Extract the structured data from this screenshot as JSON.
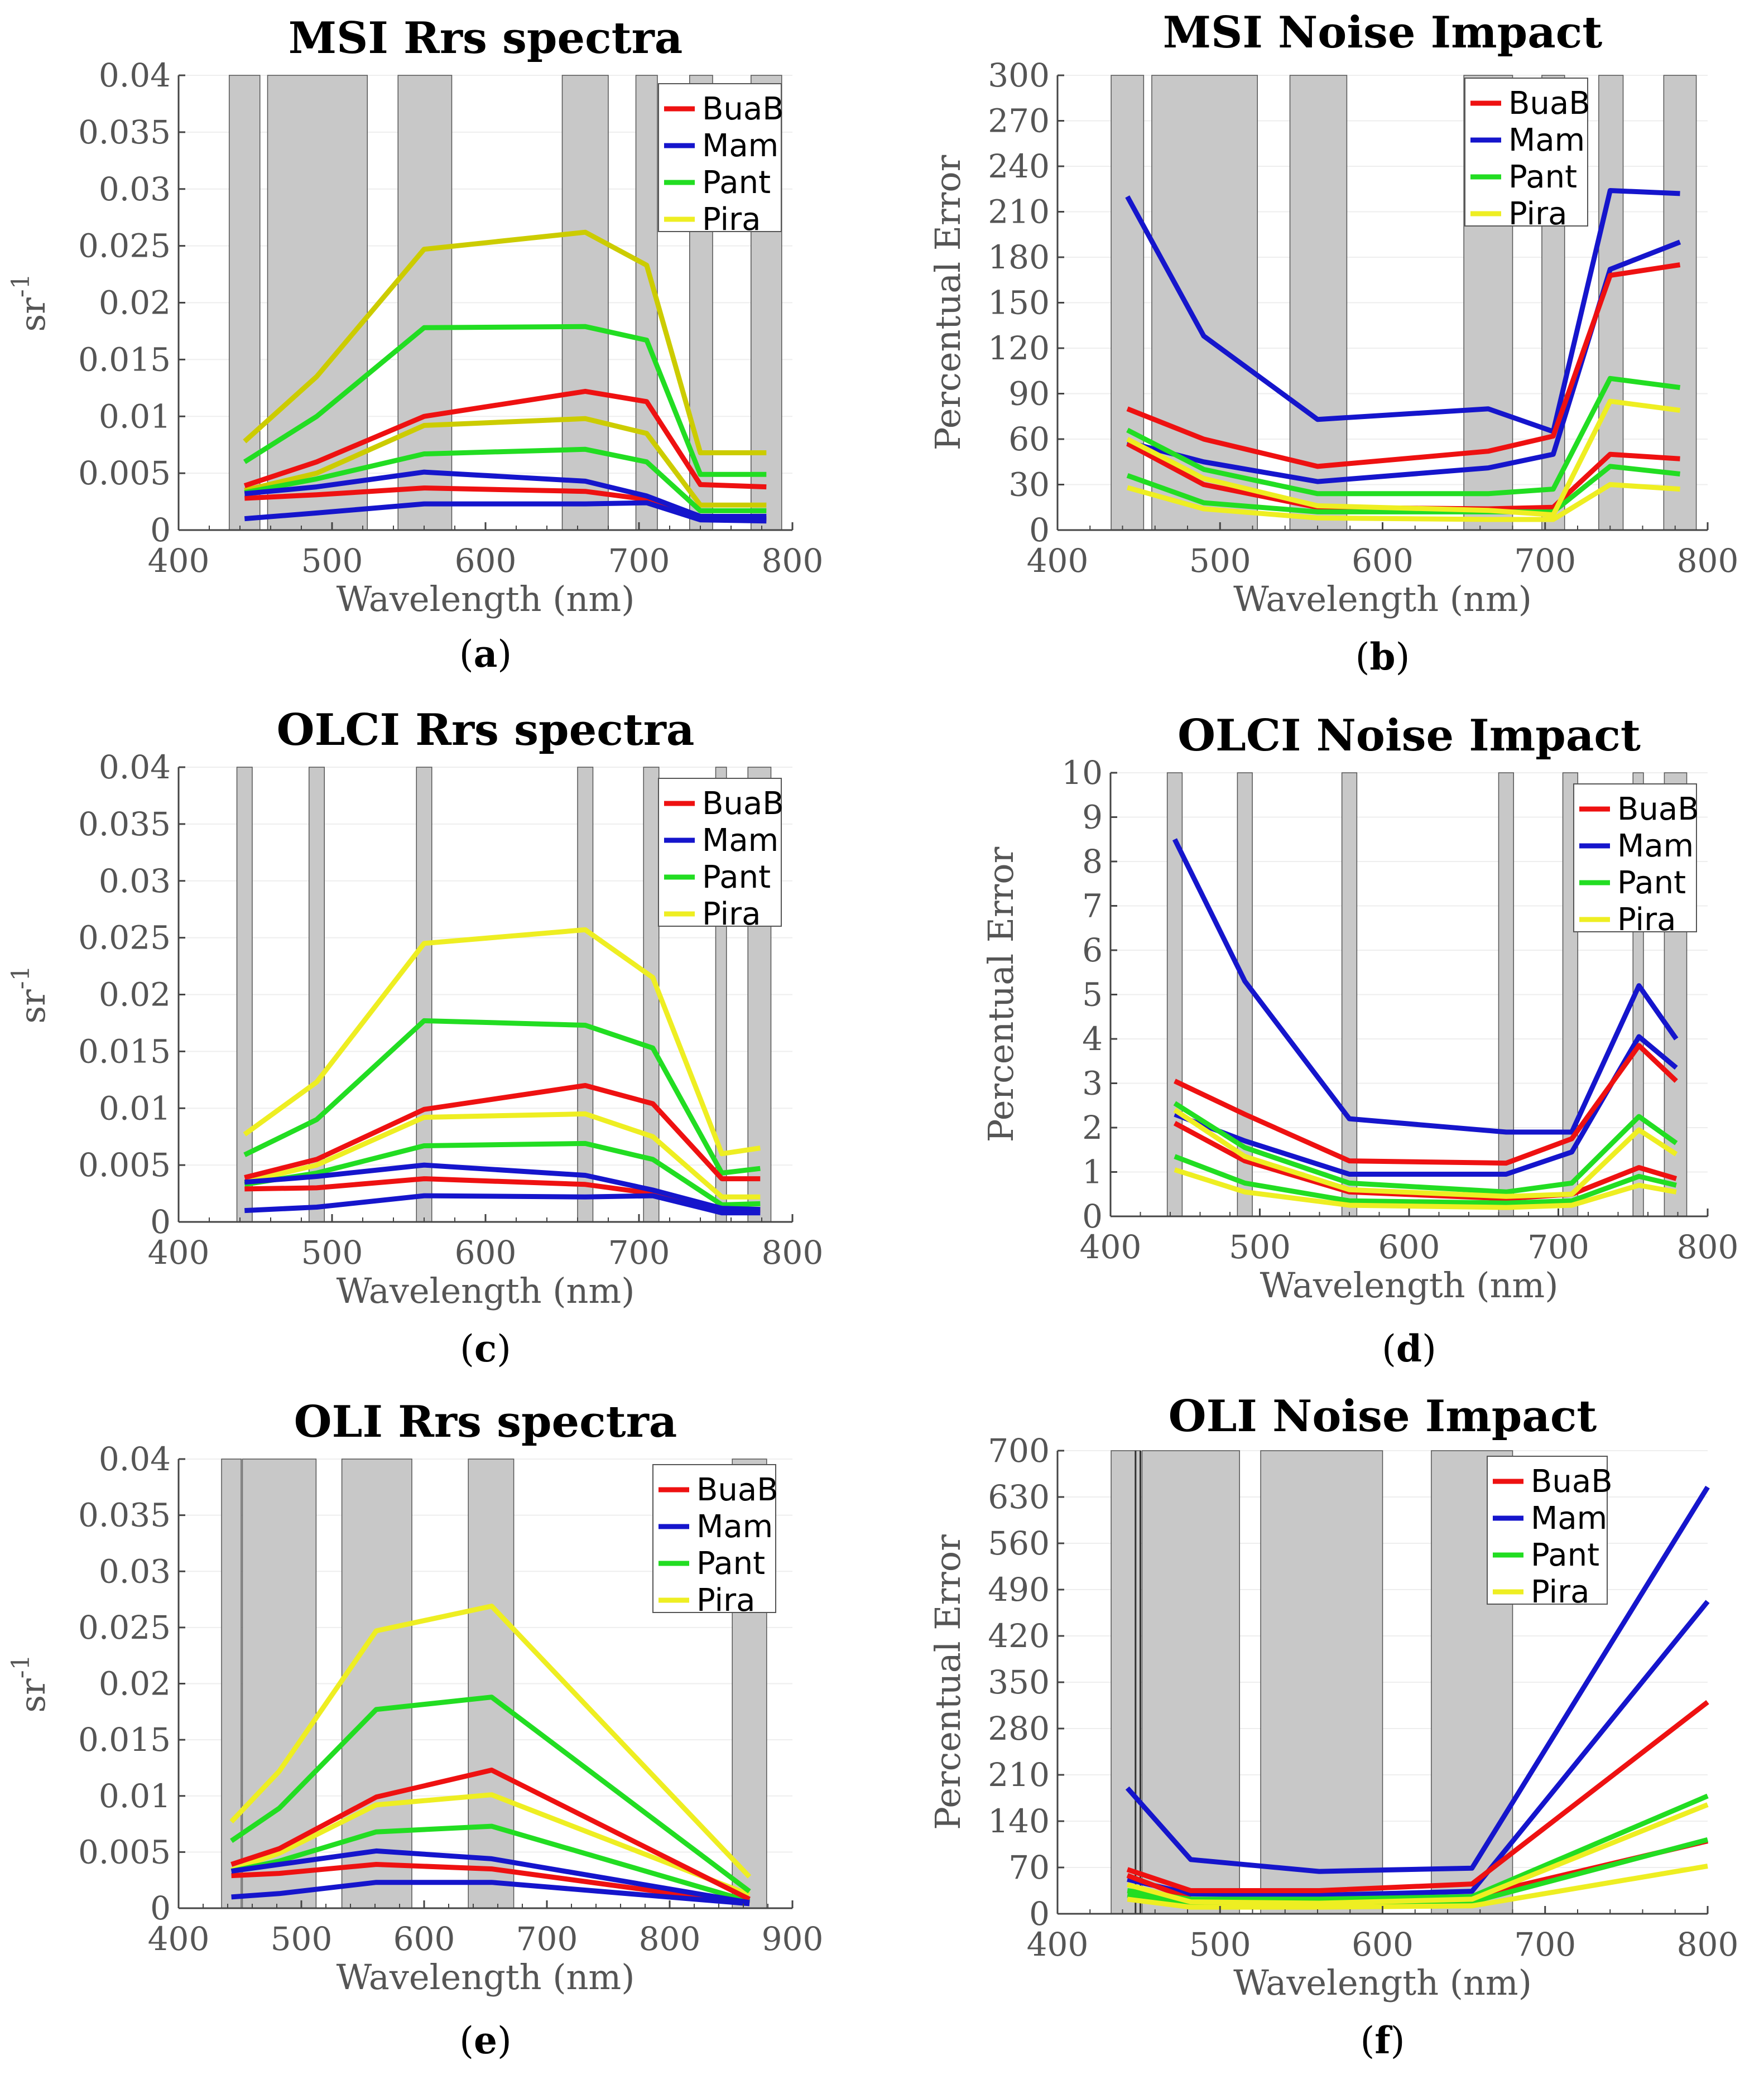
{
  "colors": {
    "BuaB": "#ee1111",
    "Mam": "#1515cc",
    "Pant": "#22dd22",
    "Pira": "#eeee22",
    "Pira_dark": "#cccc00",
    "band": "#c8c8c8",
    "grid": "#eeeeee"
  },
  "chart_data": [
    {
      "id": "a",
      "type": "line",
      "title": "MSI Rrs spectra",
      "caption_letter": "a",
      "xlabel": "Wavelength (nm)",
      "ylabel": "sr",
      "ylabel_sup": "-1",
      "xlim": [
        400,
        800
      ],
      "ylim": [
        0,
        0.04
      ],
      "xticks": [
        400,
        500,
        600,
        700,
        800
      ],
      "yticks": [
        0,
        0.005,
        0.01,
        0.015,
        0.02,
        0.025,
        0.03,
        0.035,
        0.04
      ],
      "ytick_labels": [
        "0",
        "0.005",
        "0.01",
        "0.015",
        "0.02",
        "0.025",
        "0.03",
        "0.035",
        "0.04"
      ],
      "bands": [
        [
          433,
          453
        ],
        [
          458,
          523
        ],
        [
          543,
          578
        ],
        [
          650,
          680
        ],
        [
          698,
          712
        ],
        [
          733,
          748
        ],
        [
          773,
          793
        ]
      ],
      "legend": [
        "BuaB",
        "Mam",
        "Pant",
        "Pira"
      ],
      "x": [
        443,
        490,
        560,
        665,
        705,
        740,
        783
      ],
      "series": [
        {
          "name": "Pira",
          "color_key": "Pira_dark",
          "values": [
            0.0078,
            0.0135,
            0.0247,
            0.0262,
            0.0233,
            0.0068,
            0.0068
          ]
        },
        {
          "name": "Pira",
          "color_key": "Pira_dark",
          "values": [
            0.0035,
            0.005,
            0.0092,
            0.0098,
            0.0085,
            0.0022,
            0.0022
          ]
        },
        {
          "name": "Pant",
          "color_key": "Pant",
          "values": [
            0.006,
            0.01,
            0.0178,
            0.0179,
            0.0167,
            0.0049,
            0.0049
          ]
        },
        {
          "name": "Pant",
          "color_key": "Pant",
          "values": [
            0.0033,
            0.0045,
            0.0067,
            0.0071,
            0.006,
            0.0017,
            0.0017
          ]
        },
        {
          "name": "BuaB",
          "color_key": "BuaB",
          "values": [
            0.0039,
            0.006,
            0.01,
            0.0122,
            0.0113,
            0.004,
            0.0038
          ]
        },
        {
          "name": "BuaB",
          "color_key": "BuaB",
          "values": [
            0.0028,
            0.0031,
            0.0037,
            0.0034,
            0.0027,
            0.0011,
            0.001
          ]
        },
        {
          "name": "Mam",
          "color_key": "Mam",
          "values": [
            0.0032,
            0.0038,
            0.0051,
            0.0043,
            0.003,
            0.0012,
            0.0012
          ]
        },
        {
          "name": "Mam",
          "color_key": "Mam",
          "values": [
            0.001,
            0.0015,
            0.0023,
            0.0023,
            0.0024,
            0.0009,
            0.0008
          ]
        }
      ]
    },
    {
      "id": "b",
      "type": "line",
      "title": "MSI Noise Impact",
      "caption_letter": "b",
      "xlabel": "Wavelength (nm)",
      "ylabel": "Percentual Error",
      "ylabel_sup": "",
      "xlim": [
        400,
        800
      ],
      "ylim": [
        0,
        300
      ],
      "xticks": [
        400,
        500,
        600,
        700,
        800
      ],
      "yticks": [
        0,
        30,
        60,
        90,
        120,
        150,
        180,
        210,
        240,
        270,
        300
      ],
      "ytick_labels": [
        "0",
        "30",
        "60",
        "90",
        "120",
        "150",
        "180",
        "210",
        "240",
        "270",
        "300"
      ],
      "bands": [
        [
          433,
          453
        ],
        [
          458,
          523
        ],
        [
          543,
          578
        ],
        [
          650,
          680
        ],
        [
          698,
          712
        ],
        [
          733,
          748
        ],
        [
          773,
          793
        ]
      ],
      "legend": [
        "BuaB",
        "Mam",
        "Pant",
        "Pira"
      ],
      "x": [
        443,
        490,
        560,
        665,
        705,
        740,
        783
      ],
      "series": [
        {
          "name": "Mam",
          "color_key": "Mam",
          "values": [
            220,
            128,
            73,
            80,
            65,
            224,
            222
          ]
        },
        {
          "name": "Mam",
          "color_key": "Mam",
          "values": [
            58,
            45,
            32,
            41,
            50,
            172,
            190
          ]
        },
        {
          "name": "BuaB",
          "color_key": "BuaB",
          "values": [
            80,
            60,
            42,
            52,
            62,
            168,
            175
          ]
        },
        {
          "name": "BuaB",
          "color_key": "BuaB",
          "values": [
            57,
            30,
            15,
            14,
            15,
            50,
            47
          ]
        },
        {
          "name": "Pant",
          "color_key": "Pant",
          "values": [
            66,
            40,
            24,
            24,
            27,
            100,
            94
          ]
        },
        {
          "name": "Pant",
          "color_key": "Pant",
          "values": [
            36,
            18,
            12,
            12,
            12,
            42,
            37
          ]
        },
        {
          "name": "Pira",
          "color_key": "Pira",
          "values": [
            60,
            34,
            16,
            13,
            10,
            85,
            79
          ]
        },
        {
          "name": "Pira",
          "color_key": "Pira",
          "values": [
            28,
            14,
            8,
            7,
            7,
            30,
            27
          ]
        }
      ]
    },
    {
      "id": "c",
      "type": "line",
      "title": "OLCI Rrs spectra",
      "caption_letter": "c",
      "xlabel": "Wavelength (nm)",
      "ylabel": "sr",
      "ylabel_sup": "-1",
      "xlim": [
        400,
        800
      ],
      "ylim": [
        0,
        0.04
      ],
      "xticks": [
        400,
        500,
        600,
        700,
        800
      ],
      "yticks": [
        0,
        0.005,
        0.01,
        0.015,
        0.02,
        0.025,
        0.03,
        0.035,
        0.04
      ],
      "ytick_labels": [
        "0",
        "0.005",
        "0.01",
        "0.015",
        "0.02",
        "0.025",
        "0.03",
        "0.035",
        "0.04"
      ],
      "bands": [
        [
          438,
          448
        ],
        [
          485,
          495
        ],
        [
          555,
          565
        ],
        [
          660,
          670
        ],
        [
          703,
          713
        ],
        [
          750,
          757
        ],
        [
          771,
          786
        ]
      ],
      "legend": [
        "BuaB",
        "Mam",
        "Pant",
        "Pira"
      ],
      "x": [
        443,
        490,
        560,
        665,
        709,
        754,
        779
      ],
      "series": [
        {
          "name": "Pira",
          "color_key": "Pira",
          "values": [
            0.0077,
            0.0123,
            0.0245,
            0.0257,
            0.0215,
            0.006,
            0.0065
          ]
        },
        {
          "name": "Pira",
          "color_key": "Pira",
          "values": [
            0.0035,
            0.005,
            0.0092,
            0.0095,
            0.0075,
            0.0022,
            0.0022
          ]
        },
        {
          "name": "Pant",
          "color_key": "Pant",
          "values": [
            0.0059,
            0.009,
            0.0177,
            0.0173,
            0.0153,
            0.0043,
            0.0047
          ]
        },
        {
          "name": "Pant",
          "color_key": "Pant",
          "values": [
            0.0033,
            0.0043,
            0.0067,
            0.0069,
            0.0055,
            0.0015,
            0.0016
          ]
        },
        {
          "name": "BuaB",
          "color_key": "BuaB",
          "values": [
            0.0039,
            0.0055,
            0.0099,
            0.012,
            0.0104,
            0.0038,
            0.0038
          ]
        },
        {
          "name": "BuaB",
          "color_key": "BuaB",
          "values": [
            0.0029,
            0.003,
            0.0038,
            0.0033,
            0.0025,
            0.001,
            0.001
          ]
        },
        {
          "name": "Mam",
          "color_key": "Mam",
          "values": [
            0.0035,
            0.004,
            0.005,
            0.0041,
            0.0028,
            0.0012,
            0.0011
          ]
        },
        {
          "name": "Mam",
          "color_key": "Mam",
          "values": [
            0.001,
            0.0013,
            0.0023,
            0.0022,
            0.0023,
            0.0008,
            0.0008
          ]
        }
      ]
    },
    {
      "id": "d",
      "type": "line",
      "title": "OLCI Noise Impact",
      "caption_letter": "d",
      "xlabel": "Wavelength (nm)",
      "ylabel": "Percentual Error",
      "ylabel_sup": "",
      "xlim": [
        400,
        800
      ],
      "ylim": [
        0,
        10
      ],
      "xticks": [
        400,
        500,
        600,
        700,
        800
      ],
      "yticks": [
        0,
        1,
        2,
        3,
        4,
        5,
        6,
        7,
        8,
        9,
        10
      ],
      "ytick_labels": [
        "0",
        "1",
        "2",
        "3",
        "4",
        "5",
        "6",
        "7",
        "8",
        "9",
        "10"
      ],
      "bands": [
        [
          438,
          448
        ],
        [
          485,
          495
        ],
        [
          555,
          565
        ],
        [
          660,
          670
        ],
        [
          703,
          713
        ],
        [
          750,
          757
        ],
        [
          771,
          786
        ]
      ],
      "legend": [
        "BuaB",
        "Mam",
        "Pant",
        "Pira"
      ],
      "x": [
        443,
        490,
        560,
        665,
        709,
        754,
        779
      ],
      "series": [
        {
          "name": "Mam",
          "color_key": "Mam",
          "values": [
            8.5,
            5.3,
            2.2,
            1.9,
            1.9,
            5.2,
            4.0
          ]
        },
        {
          "name": "Mam",
          "color_key": "Mam",
          "values": [
            2.3,
            1.7,
            0.95,
            0.95,
            1.45,
            4.05,
            3.35
          ]
        },
        {
          "name": "BuaB",
          "color_key": "BuaB",
          "values": [
            3.05,
            2.3,
            1.25,
            1.2,
            1.75,
            3.85,
            3.05
          ]
        },
        {
          "name": "BuaB",
          "color_key": "BuaB",
          "values": [
            2.1,
            1.25,
            0.55,
            0.4,
            0.5,
            1.1,
            0.85
          ]
        },
        {
          "name": "Pant",
          "color_key": "Pant",
          "values": [
            2.55,
            1.55,
            0.75,
            0.55,
            0.75,
            2.25,
            1.65
          ]
        },
        {
          "name": "Pant",
          "color_key": "Pant",
          "values": [
            1.35,
            0.75,
            0.35,
            0.3,
            0.35,
            0.9,
            0.7
          ]
        },
        {
          "name": "Pira",
          "color_key": "Pira",
          "values": [
            2.4,
            1.35,
            0.6,
            0.45,
            0.5,
            1.95,
            1.4
          ]
        },
        {
          "name": "Pira",
          "color_key": "Pira",
          "values": [
            1.05,
            0.55,
            0.25,
            0.2,
            0.25,
            0.7,
            0.55
          ]
        }
      ]
    },
    {
      "id": "e",
      "type": "line",
      "title": "OLI Rrs spectra",
      "caption_letter": "e",
      "xlabel": "Wavelength (nm)",
      "ylabel": "sr",
      "ylabel_sup": "-1",
      "xlim": [
        400,
        900
      ],
      "ylim": [
        0,
        0.04
      ],
      "xticks": [
        400,
        500,
        600,
        700,
        800,
        900
      ],
      "yticks": [
        0,
        0.005,
        0.01,
        0.015,
        0.02,
        0.025,
        0.03,
        0.035,
        0.04
      ],
      "ytick_labels": [
        "0",
        "0.005",
        "0.01",
        "0.015",
        "0.02",
        "0.025",
        "0.03",
        "0.035",
        "0.04"
      ],
      "bands": [
        [
          435,
          451
        ],
        [
          452,
          512
        ],
        [
          533,
          590
        ],
        [
          636,
          673
        ],
        [
          851,
          879
        ]
      ],
      "legend": [
        "BuaB",
        "Mam",
        "Pant",
        "Pira"
      ],
      "x": [
        443,
        482,
        561,
        655,
        865
      ],
      "series": [
        {
          "name": "Pira",
          "color_key": "Pira",
          "values": [
            0.0077,
            0.0122,
            0.0247,
            0.0269,
            0.0028
          ]
        },
        {
          "name": "Pira",
          "color_key": "Pira",
          "values": [
            0.0034,
            0.0049,
            0.0092,
            0.0101,
            0.0012
          ]
        },
        {
          "name": "Pant",
          "color_key": "Pant",
          "values": [
            0.006,
            0.0089,
            0.0177,
            0.0188,
            0.0015
          ]
        },
        {
          "name": "Pant",
          "color_key": "Pant",
          "values": [
            0.0033,
            0.0042,
            0.0068,
            0.0073,
            0.0006
          ]
        },
        {
          "name": "BuaB",
          "color_key": "BuaB",
          "values": [
            0.0039,
            0.0053,
            0.0099,
            0.0123,
            0.0008
          ]
        },
        {
          "name": "BuaB",
          "color_key": "BuaB",
          "values": [
            0.0029,
            0.0031,
            0.0039,
            0.0035,
            0.0004
          ]
        },
        {
          "name": "Mam",
          "color_key": "Mam",
          "values": [
            0.0033,
            0.0039,
            0.0051,
            0.0044,
            0.0005
          ]
        },
        {
          "name": "Mam",
          "color_key": "Mam",
          "values": [
            0.001,
            0.0013,
            0.0023,
            0.0023,
            0.0004
          ]
        }
      ]
    },
    {
      "id": "f",
      "type": "line",
      "title": "OLI Noise Impact",
      "caption_letter": "f",
      "xlabel": "Wavelength (nm)",
      "ylabel": "Percentual Error",
      "ylabel_sup": "",
      "xlim": [
        400,
        800
      ],
      "ylim": [
        0,
        700
      ],
      "xticks": [
        400,
        500,
        600,
        700,
        800
      ],
      "yticks": [
        0,
        70,
        140,
        210,
        280,
        350,
        420,
        490,
        560,
        630,
        700
      ],
      "ytick_labels": [
        "0",
        "70",
        "140",
        "210",
        "280",
        "350",
        "420",
        "490",
        "560",
        "630",
        "700"
      ],
      "bands": [
        [
          433,
          451
        ],
        [
          452,
          512
        ],
        [
          525,
          600
        ],
        [
          630,
          680
        ]
      ],
      "band_edges": [
        448,
        451
      ],
      "legend": [
        "BuaB",
        "Mam",
        "Pant",
        "Pira"
      ],
      "x": [
        443,
        482,
        561,
        655,
        800
      ],
      "series": [
        {
          "name": "Mam",
          "color_key": "Mam",
          "values": [
            190,
            82,
            64,
            69,
            645
          ]
        },
        {
          "name": "Mam",
          "color_key": "Mam",
          "values": [
            52,
            30,
            28,
            34,
            472
          ]
        },
        {
          "name": "BuaB",
          "color_key": "BuaB",
          "values": [
            67,
            35,
            35,
            45,
            320
          ]
        },
        {
          "name": "BuaB",
          "color_key": "BuaB",
          "values": [
            58,
            22,
            20,
            26,
            110
          ]
        },
        {
          "name": "Pant",
          "color_key": "Pant",
          "values": [
            35,
            22,
            22,
            26,
            178
          ]
        },
        {
          "name": "Pant",
          "color_key": "Pant",
          "values": [
            28,
            15,
            14,
            18,
            112
          ]
        },
        {
          "name": "Pira",
          "color_key": "Pira",
          "values": [
            44,
            18,
            16,
            22,
            165
          ]
        },
        {
          "name": "Pira",
          "color_key": "Pira",
          "values": [
            22,
            10,
            10,
            12,
            72
          ]
        }
      ]
    }
  ]
}
